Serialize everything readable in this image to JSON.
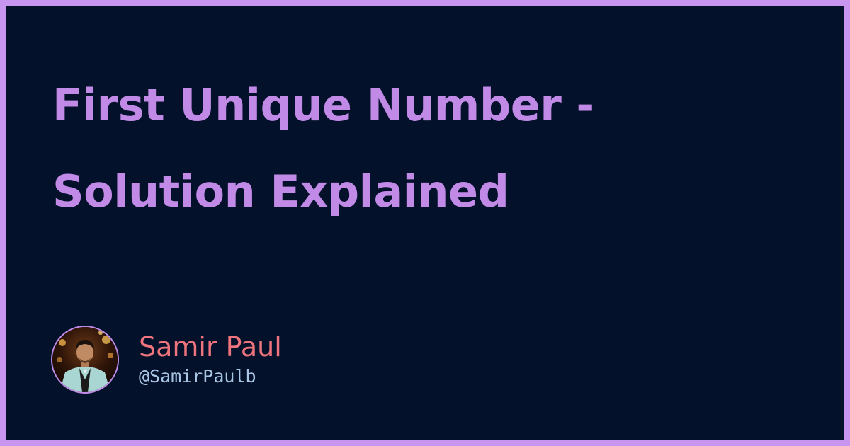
{
  "title": "First Unique Number - Solution Explained",
  "author": {
    "name": "Samir Paul",
    "handle": "@SamirPaulb"
  },
  "colors": {
    "border": "#c896ee",
    "background": "#03112a",
    "title": "#c08ae6",
    "author_name": "#f0747d",
    "author_handle": "#a9c6e6"
  }
}
